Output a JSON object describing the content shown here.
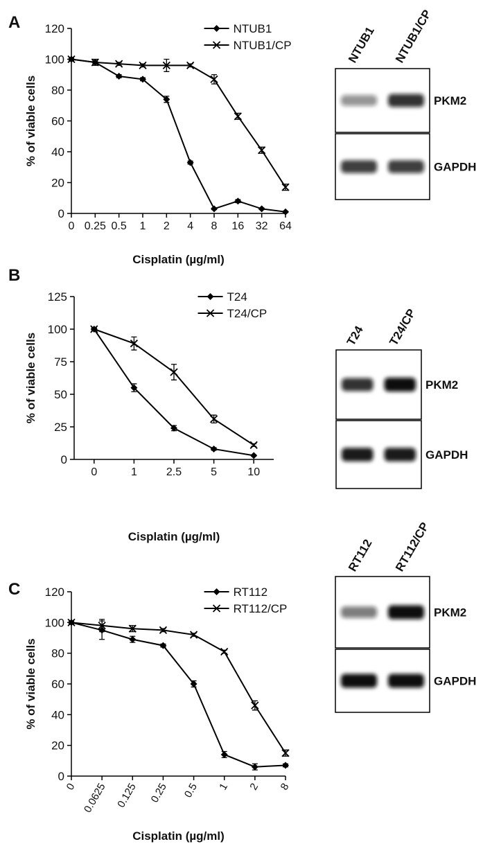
{
  "chart_data": [
    {
      "type": "line",
      "xlabel": "Cisplatin (µg/ml)",
      "ylabel": "% of viable cells",
      "categories": [
        "0",
        "0.25",
        "0.5",
        "1",
        "2",
        "4",
        "8",
        "16",
        "32",
        "64"
      ],
      "ylim": [
        0,
        120
      ],
      "yticks": [
        0,
        20,
        40,
        60,
        80,
        100,
        120
      ],
      "legend": "upper right",
      "series": [
        {
          "name": "NTUB1",
          "color": "#000000",
          "marker": "diamond",
          "values": [
            100,
            98,
            89,
            87,
            74,
            33,
            3,
            8,
            3,
            1
          ],
          "errors": [
            1,
            1,
            1,
            1,
            2,
            1,
            0.5,
            1,
            0.5,
            0.5
          ]
        },
        {
          "name": "NTUB1/CP",
          "color": "#000000",
          "marker": "x",
          "values": [
            100,
            98,
            97,
            96,
            96,
            96,
            87,
            63,
            41,
            17
          ],
          "errors": [
            1,
            2,
            1,
            1,
            4,
            1,
            3,
            2,
            2,
            2
          ]
        }
      ]
    },
    {
      "type": "line",
      "xlabel": "Cisplatin (µg/ml)",
      "ylabel": "% of viable cells",
      "categories": [
        "0",
        "1",
        "2.5",
        "5",
        "10"
      ],
      "ylim": [
        0,
        125
      ],
      "yticks": [
        0,
        25,
        50,
        75,
        100,
        125
      ],
      "legend": "upper right",
      "series": [
        {
          "name": "T24",
          "color": "#000000",
          "marker": "diamond",
          "values": [
            100,
            55,
            24,
            8,
            3
          ],
          "errors": [
            1,
            3,
            2,
            1,
            0.5
          ]
        },
        {
          "name": "T24/CP",
          "color": "#000000",
          "marker": "x",
          "values": [
            100,
            89,
            67,
            31,
            11
          ],
          "errors": [
            1,
            5,
            6,
            3,
            1
          ]
        }
      ]
    },
    {
      "type": "line",
      "xlabel": "Cisplatin (µg/ml)",
      "ylabel": "% of viable cells",
      "categories": [
        "0",
        "0.0625",
        "0.125",
        "0.25",
        "0.5",
        "1",
        "2",
        "8"
      ],
      "ylim": [
        0,
        120
      ],
      "yticks": [
        0,
        20,
        40,
        60,
        80,
        100,
        120
      ],
      "legend": "upper right",
      "series": [
        {
          "name": "RT112",
          "color": "#000000",
          "marker": "diamond",
          "values": [
            100,
            95,
            89,
            85,
            60,
            14,
            6,
            7
          ],
          "errors": [
            1,
            6,
            2,
            1,
            2,
            2,
            2,
            1
          ]
        },
        {
          "name": "RT112/CP",
          "color": "#000000",
          "marker": "x",
          "values": [
            100,
            98,
            96,
            95,
            92,
            81,
            46,
            15
          ],
          "errors": [
            1,
            4,
            2,
            1,
            1,
            1,
            3,
            2
          ]
        }
      ]
    }
  ],
  "panels": [
    {
      "letter": "A",
      "blot": {
        "lanes": [
          "NTUB1",
          "NTUB1/CP"
        ],
        "rows": [
          "PKM2",
          "GAPDH"
        ]
      }
    },
    {
      "letter": "B",
      "blot": {
        "lanes": [
          "T24",
          "T24/CP"
        ],
        "rows": [
          "PKM2",
          "GAPDH"
        ]
      }
    },
    {
      "letter": "C",
      "blot": {
        "lanes": [
          "RT112",
          "RT112/CP"
        ],
        "rows": [
          "PKM2",
          "GAPDH"
        ]
      }
    }
  ]
}
